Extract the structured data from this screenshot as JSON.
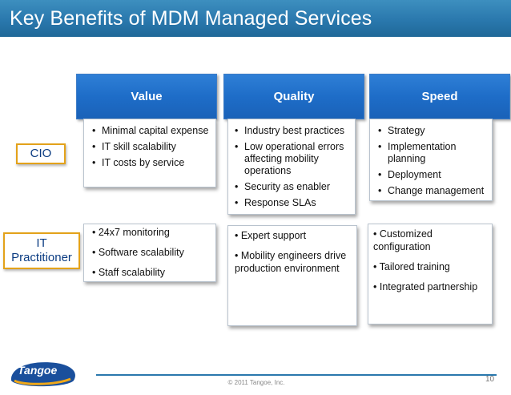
{
  "slide": {
    "title": "Key Benefits of MDM Managed Services",
    "page_number": "10",
    "copyright": "© 2011 Tangoe, Inc.",
    "logo_text": "Tangoe"
  },
  "columns": [
    {
      "label": "Value"
    },
    {
      "label": "Quality"
    },
    {
      "label": "Speed"
    }
  ],
  "rows": [
    {
      "label": "CIO"
    },
    {
      "label_line1": "IT",
      "label_line2": "Practitioner"
    }
  ],
  "cio": {
    "value": [
      "Minimal capital expense",
      "IT skill scalability",
      "IT costs by service"
    ],
    "quality": [
      "Industry best practices",
      "Low operational errors affecting mobility operations",
      "Security as enabler",
      "Response SLAs"
    ],
    "speed": [
      "Strategy",
      "Implementation planning",
      "Deployment",
      "Change management"
    ]
  },
  "it": {
    "value": [
      "• 24x7 monitoring",
      "• Software scalability",
      "• Staff scalability"
    ],
    "quality": [
      "• Expert support",
      "• Mobility engineers drive production environment"
    ],
    "speed": [
      "• Customized configuration",
      "• Tailored training",
      "• Integrated partnership"
    ]
  },
  "colors": {
    "title_bar": "#2a78ad",
    "header_blue": "#1e6dc8",
    "label_border": "#e3a21a",
    "label_text": "#0b3c82"
  }
}
